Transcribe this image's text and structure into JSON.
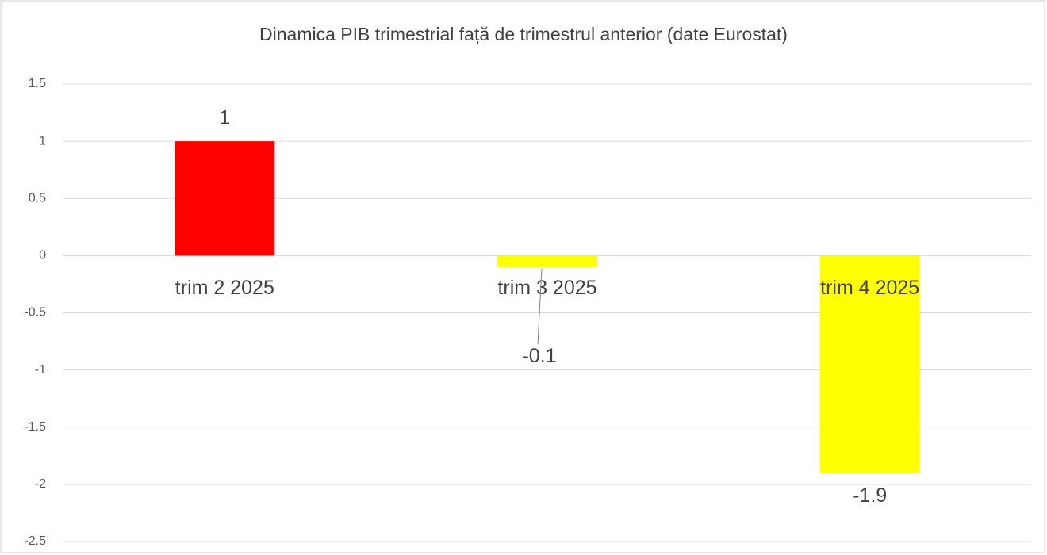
{
  "chart_data": {
    "type": "bar",
    "title": "Dinamica PIB trimestrial față de trimestrul anterior (date Eurostat)",
    "categories": [
      "trim 2 2025",
      "trim 3 2025",
      "trim 4 2025"
    ],
    "values": [
      1,
      -0.1,
      -1.9
    ],
    "colors": [
      "#ff0000",
      "#ffff00",
      "#ffff00"
    ],
    "ylim": [
      -2.5,
      1.5
    ],
    "yticks": [
      -2.5,
      -2,
      -1.5,
      -1,
      -0.5,
      0,
      0.5,
      1,
      1.5
    ],
    "grid": true
  }
}
